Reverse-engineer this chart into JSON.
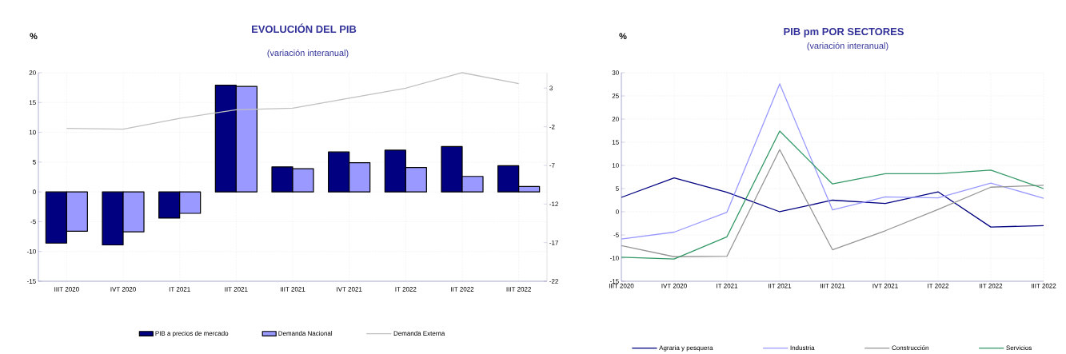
{
  "chart_data": [
    {
      "type": "bar",
      "title": "EVOLUCIÓN DEL PIB",
      "subtitle": "(variación interanual)",
      "ylabel": "%",
      "categories": [
        "IIIT 2020",
        "IVT 2020",
        "IT 2021",
        "IIT 2021",
        "IIIT 2021",
        "IVT 2021",
        "IT 2022",
        "IIT 2022",
        "IIIT 2022"
      ],
      "series": [
        {
          "name": "PIB a precios de mercado",
          "color": "#000080",
          "values": [
            -8.6,
            -8.9,
            -4.4,
            17.9,
            4.2,
            6.7,
            7.0,
            7.6,
            4.4
          ]
        },
        {
          "name": "Demanda Nacional",
          "color": "#9999ff",
          "values": [
            -6.6,
            -6.7,
            -3.6,
            17.7,
            3.9,
            4.9,
            4.1,
            2.6,
            0.9
          ]
        },
        {
          "name": "Demanda Externa",
          "type": "line",
          "axis": "y2",
          "color": "#c0c0c0",
          "values": [
            -2.2,
            -2.3,
            -0.9,
            0.2,
            0.4,
            1.7,
            3.0,
            5.0,
            3.6
          ]
        }
      ],
      "ylim": [
        -15,
        20
      ],
      "yticks": [
        -15,
        -10,
        -5,
        0,
        5,
        10,
        15,
        20
      ],
      "y2lim": [
        -22,
        5
      ],
      "y2ticks": [
        -22,
        -17,
        -12,
        -7,
        -2,
        3
      ],
      "grid": true,
      "legend": "bottom"
    },
    {
      "type": "line",
      "title": "PIB pm POR SECTORES",
      "subtitle": "(variación interanual)",
      "ylabel": "%",
      "categories": [
        "IIIT 2020",
        "IVT 2020",
        "IT 2021",
        "IIT 2021",
        "IIIT 2021",
        "IVT 2021",
        "IT 2022",
        "IIT 2022",
        "IIIT 2022"
      ],
      "series": [
        {
          "name": "Agraria y pesquera",
          "color": "#000080",
          "values": [
            3.1,
            7.3,
            4.2,
            0.0,
            2.5,
            1.8,
            4.3,
            -3.3,
            -3.0
          ]
        },
        {
          "name": "Industria",
          "color": "#9999ff",
          "values": [
            -5.9,
            -4.4,
            -0.1,
            27.6,
            0.4,
            3.2,
            3.0,
            6.2,
            2.9
          ]
        },
        {
          "name": "Construcción",
          "color": "#969696",
          "values": [
            -7.3,
            -9.7,
            -9.6,
            13.4,
            -8.2,
            -4.1,
            0.5,
            5.3,
            5.7
          ]
        },
        {
          "name": "Servicios",
          "color": "#339966",
          "values": [
            -9.8,
            -10.2,
            -5.4,
            17.4,
            6.0,
            8.2,
            8.2,
            9.0,
            5.0
          ]
        }
      ],
      "ylim": [
        -15,
        30
      ],
      "yticks": [
        -15,
        -10,
        -5,
        0,
        5,
        10,
        15,
        20,
        25,
        30
      ],
      "grid": true,
      "legend": "bottom"
    }
  ]
}
